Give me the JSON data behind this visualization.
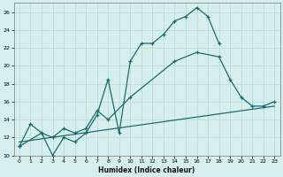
{
  "xlabel": "Humidex (Indice chaleur)",
  "bg_color": "#d7eeee",
  "grid_color": "#b8d8d8",
  "line_color": "#1a6b6b",
  "xlim": [
    -0.5,
    23.5
  ],
  "ylim": [
    10,
    27
  ],
  "xticks": [
    0,
    1,
    2,
    3,
    4,
    5,
    6,
    7,
    8,
    9,
    10,
    11,
    12,
    13,
    14,
    15,
    16,
    17,
    18,
    19,
    20,
    21,
    22,
    23
  ],
  "yticks": [
    10,
    12,
    14,
    16,
    18,
    20,
    22,
    24,
    26
  ],
  "curve1_x": [
    0,
    1,
    2,
    3,
    4,
    5,
    6,
    7,
    8,
    9,
    10,
    11,
    12,
    13,
    14,
    15,
    16,
    17,
    18
  ],
  "curve1_y": [
    11,
    13.5,
    12.5,
    10,
    12,
    11.5,
    12.5,
    14.5,
    18.5,
    12.5,
    20.5,
    22.5,
    22.5,
    23.5,
    25.0,
    25.5,
    26.5,
    25.5,
    22.5
  ],
  "curve2_x": [
    0,
    2,
    3,
    4,
    5,
    6,
    7,
    8,
    10,
    14,
    16,
    18,
    19,
    20,
    21,
    22,
    23
  ],
  "curve2_y": [
    11.0,
    12.5,
    12.0,
    13.0,
    12.5,
    13.0,
    15.0,
    14.0,
    16.5,
    20.5,
    21.5,
    21.0,
    18.5,
    16.5,
    15.5,
    15.5,
    16.0
  ],
  "curve3_x": [
    0,
    23
  ],
  "curve3_y": [
    11.5,
    15.5
  ]
}
